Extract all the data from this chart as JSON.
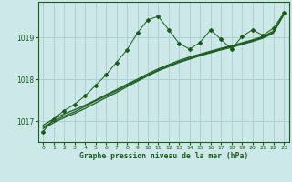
{
  "title": "Graphe pression niveau de la mer (hPa)",
  "bg_color": "#cce8e8",
  "grid_color": "#aacccc",
  "line_color": "#1a5c1a",
  "xlim": [
    -0.5,
    23.5
  ],
  "ylim": [
    1016.5,
    1019.85
  ],
  "yticks": [
    1017,
    1018,
    1019
  ],
  "xticks": [
    0,
    1,
    2,
    3,
    4,
    5,
    6,
    7,
    8,
    9,
    10,
    11,
    12,
    13,
    14,
    15,
    16,
    17,
    18,
    19,
    20,
    21,
    22,
    23
  ],
  "series_wiggly_x": [
    0,
    1,
    2,
    3,
    4,
    5,
    6,
    7,
    8,
    9,
    10,
    11,
    12,
    13,
    14,
    15,
    16,
    17,
    18,
    19,
    20,
    21,
    22,
    23
  ],
  "series_wiggly_y": [
    1016.75,
    1017.05,
    1017.25,
    1017.4,
    1017.6,
    1017.85,
    1018.1,
    1018.4,
    1018.7,
    1019.1,
    1019.42,
    1019.5,
    1019.18,
    1018.85,
    1018.72,
    1018.88,
    1019.18,
    1018.95,
    1018.72,
    1019.02,
    1019.18,
    1019.05,
    1019.22,
    1019.58
  ],
  "series_straight1_x": [
    0,
    1,
    2,
    3,
    4,
    5,
    6,
    7,
    8,
    9,
    10,
    11,
    12,
    13,
    14,
    15,
    16,
    17,
    18,
    19,
    20,
    21,
    22,
    23
  ],
  "series_straight1_y": [
    1016.85,
    1017.0,
    1017.12,
    1017.22,
    1017.35,
    1017.48,
    1017.6,
    1017.72,
    1017.85,
    1017.97,
    1018.1,
    1018.22,
    1018.32,
    1018.42,
    1018.5,
    1018.58,
    1018.65,
    1018.72,
    1018.78,
    1018.85,
    1018.92,
    1019.0,
    1019.12,
    1019.55
  ],
  "series_straight2_x": [
    0,
    1,
    2,
    3,
    4,
    5,
    6,
    7,
    8,
    9,
    10,
    11,
    12,
    13,
    14,
    15,
    16,
    17,
    18,
    19,
    20,
    21,
    22,
    23
  ],
  "series_straight2_y": [
    1016.9,
    1017.05,
    1017.17,
    1017.27,
    1017.38,
    1017.5,
    1017.63,
    1017.75,
    1017.88,
    1018.0,
    1018.13,
    1018.25,
    1018.35,
    1018.45,
    1018.53,
    1018.6,
    1018.67,
    1018.74,
    1018.8,
    1018.87,
    1018.94,
    1019.02,
    1019.15,
    1019.55
  ],
  "series_straight3_x": [
    0,
    1,
    2,
    3,
    4,
    5,
    6,
    7,
    8,
    9,
    10,
    11,
    12,
    13,
    14,
    15,
    16,
    17,
    18,
    19,
    20,
    21,
    22,
    23
  ],
  "series_straight3_y": [
    1016.82,
    1016.96,
    1017.08,
    1017.18,
    1017.3,
    1017.43,
    1017.56,
    1017.68,
    1017.82,
    1017.95,
    1018.08,
    1018.2,
    1018.3,
    1018.4,
    1018.48,
    1018.56,
    1018.63,
    1018.7,
    1018.76,
    1018.83,
    1018.9,
    1018.98,
    1019.1,
    1019.55
  ]
}
